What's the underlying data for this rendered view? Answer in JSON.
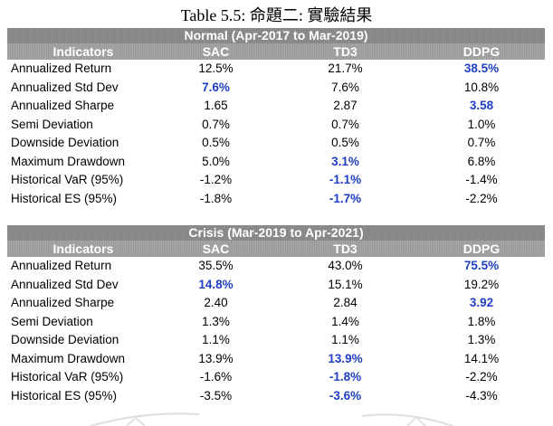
{
  "caption": "Table 5.5: 命題二: 實驗結果",
  "sections": [
    {
      "title": "Normal (Apr-2017 to Mar-2019)",
      "headers": [
        "Indicators",
        "SAC",
        "TD3",
        "DDPG"
      ],
      "rows": [
        {
          "label": "Annualized Return",
          "values": [
            "12.5%",
            "21.7%",
            "38.5%"
          ],
          "best": 2
        },
        {
          "label": "Annualized Std Dev",
          "values": [
            "7.6%",
            "7.6%",
            "10.8%"
          ],
          "best": 0
        },
        {
          "label": "Annualized Sharpe",
          "values": [
            "1.65",
            "2.87",
            "3.58"
          ],
          "best": 2
        },
        {
          "label": "Semi Deviation",
          "values": [
            "0.7%",
            "0.7%",
            "1.0%"
          ],
          "best": -1
        },
        {
          "label": "Downside Deviation",
          "values": [
            "0.5%",
            "0.5%",
            "0.7%"
          ],
          "best": -1
        },
        {
          "label": "Maximum Drawdown",
          "values": [
            "5.0%",
            "3.1%",
            "6.8%"
          ],
          "best": 1
        },
        {
          "label": "Historical VaR (95%)",
          "values": [
            "-1.2%",
            "-1.1%",
            "-1.4%"
          ],
          "best": 1
        },
        {
          "label": "Historical ES (95%)",
          "values": [
            "-1.8%",
            "-1.7%",
            "-2.2%"
          ],
          "best": 1
        }
      ]
    },
    {
      "title": "Crisis (Mar-2019 to Apr-2021)",
      "headers": [
        "Indicators",
        "SAC",
        "TD3",
        "DDPG"
      ],
      "rows": [
        {
          "label": "Annualized Return",
          "values": [
            "35.5%",
            "43.0%",
            "75.5%"
          ],
          "best": 2
        },
        {
          "label": "Annualized Std Dev",
          "values": [
            "14.8%",
            "15.1%",
            "19.2%"
          ],
          "best": 0
        },
        {
          "label": "Annualized Sharpe",
          "values": [
            "2.40",
            "2.84",
            "3.92"
          ],
          "best": 2
        },
        {
          "label": "Semi Deviation",
          "values": [
            "1.3%",
            "1.4%",
            "1.8%"
          ],
          "best": -1
        },
        {
          "label": "Downside Deviation",
          "values": [
            "1.1%",
            "1.1%",
            "1.3%"
          ],
          "best": -1
        },
        {
          "label": "Maximum Drawdown",
          "values": [
            "13.9%",
            "13.9%",
            "14.1%"
          ],
          "best": 1
        },
        {
          "label": "Historical VaR (95%)",
          "values": [
            "-1.6%",
            "-1.8%",
            "-2.2%"
          ],
          "best": 1
        },
        {
          "label": "Historical ES (95%)",
          "values": [
            "-3.5%",
            "-3.6%",
            "-4.3%"
          ],
          "best": 1
        }
      ]
    }
  ],
  "colors": {
    "highlight": "#1f3fc4",
    "header_bg": "#8a8a8a",
    "colhead_bg": "#a0a0a0"
  }
}
